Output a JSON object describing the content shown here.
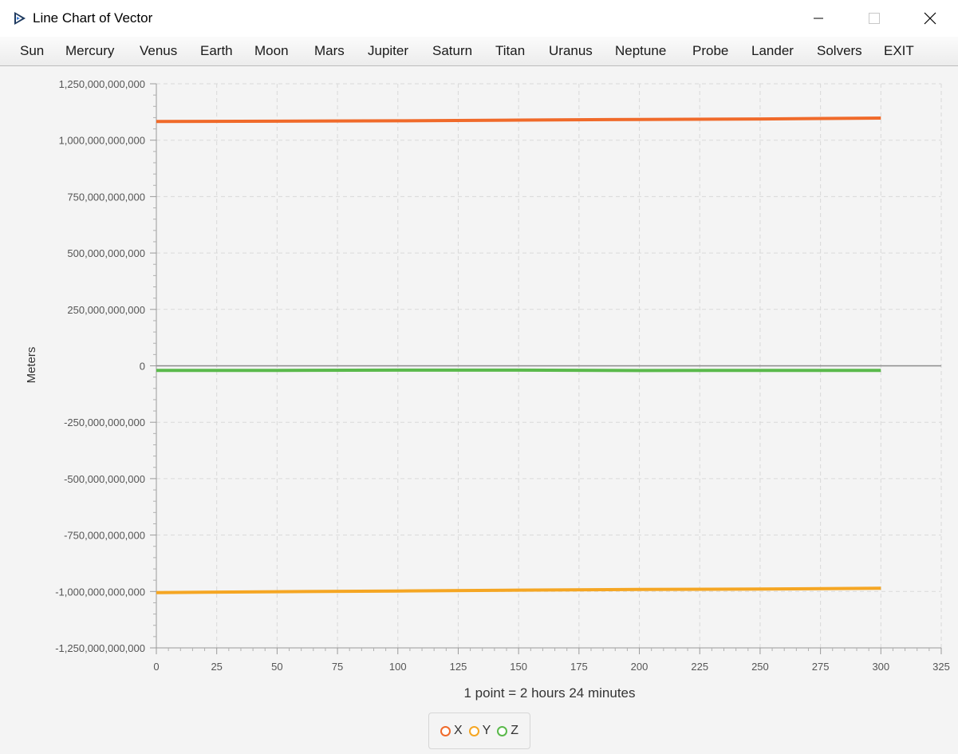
{
  "window": {
    "title": "Line Chart of Vector",
    "minimize_icon": "minimize-icon",
    "maximize_icon": "maximize-icon",
    "close_icon": "close-icon"
  },
  "menu": {
    "items": [
      "Sun",
      "Mercury",
      "Venus",
      "Earth",
      "Moon",
      "Mars",
      "Jupiter",
      "Saturn",
      "Titan",
      "Uranus",
      "Neptune",
      "Probe",
      "Lander",
      "Solvers",
      "EXIT"
    ]
  },
  "chart_data": {
    "type": "line",
    "xlabel": "1 point = 2 hours 24 minutes",
    "ylabel": "Meters",
    "xlim": [
      0,
      325
    ],
    "ylim": [
      -1250000000000,
      1250000000000
    ],
    "xticks": [
      0,
      25,
      50,
      75,
      100,
      125,
      150,
      175,
      200,
      225,
      250,
      275,
      300,
      325
    ],
    "yticks": [
      -1250000000000,
      -1000000000000,
      -750000000000,
      -500000000000,
      -250000000000,
      0,
      250000000000,
      500000000000,
      750000000000,
      1000000000000,
      1250000000000
    ],
    "xtick_labels": [
      "0",
      "25",
      "50",
      "75",
      "100",
      "125",
      "150",
      "175",
      "200",
      "225",
      "250",
      "275",
      "300",
      "325"
    ],
    "ytick_labels": [
      "-1,250,000,000,000",
      "-1,000,000,000,000",
      "-750,000,000,000",
      "-500,000,000,000",
      "-250,000,000,000",
      "0",
      "250,000,000,000",
      "500,000,000,000",
      "750,000,000,000",
      "1,000,000,000,000",
      "1,250,000,000,000"
    ],
    "grid": true,
    "legend_position": "bottom-center",
    "series": [
      {
        "name": "X",
        "color": "#f06a2a",
        "x": [
          0,
          50,
          100,
          150,
          200,
          250,
          300
        ],
        "values": [
          1083000000000,
          1084000000000,
          1086000000000,
          1089000000000,
          1092000000000,
          1094000000000,
          1098000000000
        ]
      },
      {
        "name": "Y",
        "color": "#f5a623",
        "x": [
          0,
          50,
          100,
          150,
          200,
          250,
          300
        ],
        "values": [
          -1005000000000,
          -1001000000000,
          -998000000000,
          -994000000000,
          -991000000000,
          -989000000000,
          -986000000000
        ]
      },
      {
        "name": "Z",
        "color": "#5ab94b",
        "x": [
          0,
          50,
          100,
          150,
          200,
          250,
          300
        ],
        "values": [
          -20000000000,
          -20000000000,
          -19000000000,
          -19000000000,
          -21000000000,
          -20000000000,
          -20000000000
        ]
      }
    ]
  }
}
